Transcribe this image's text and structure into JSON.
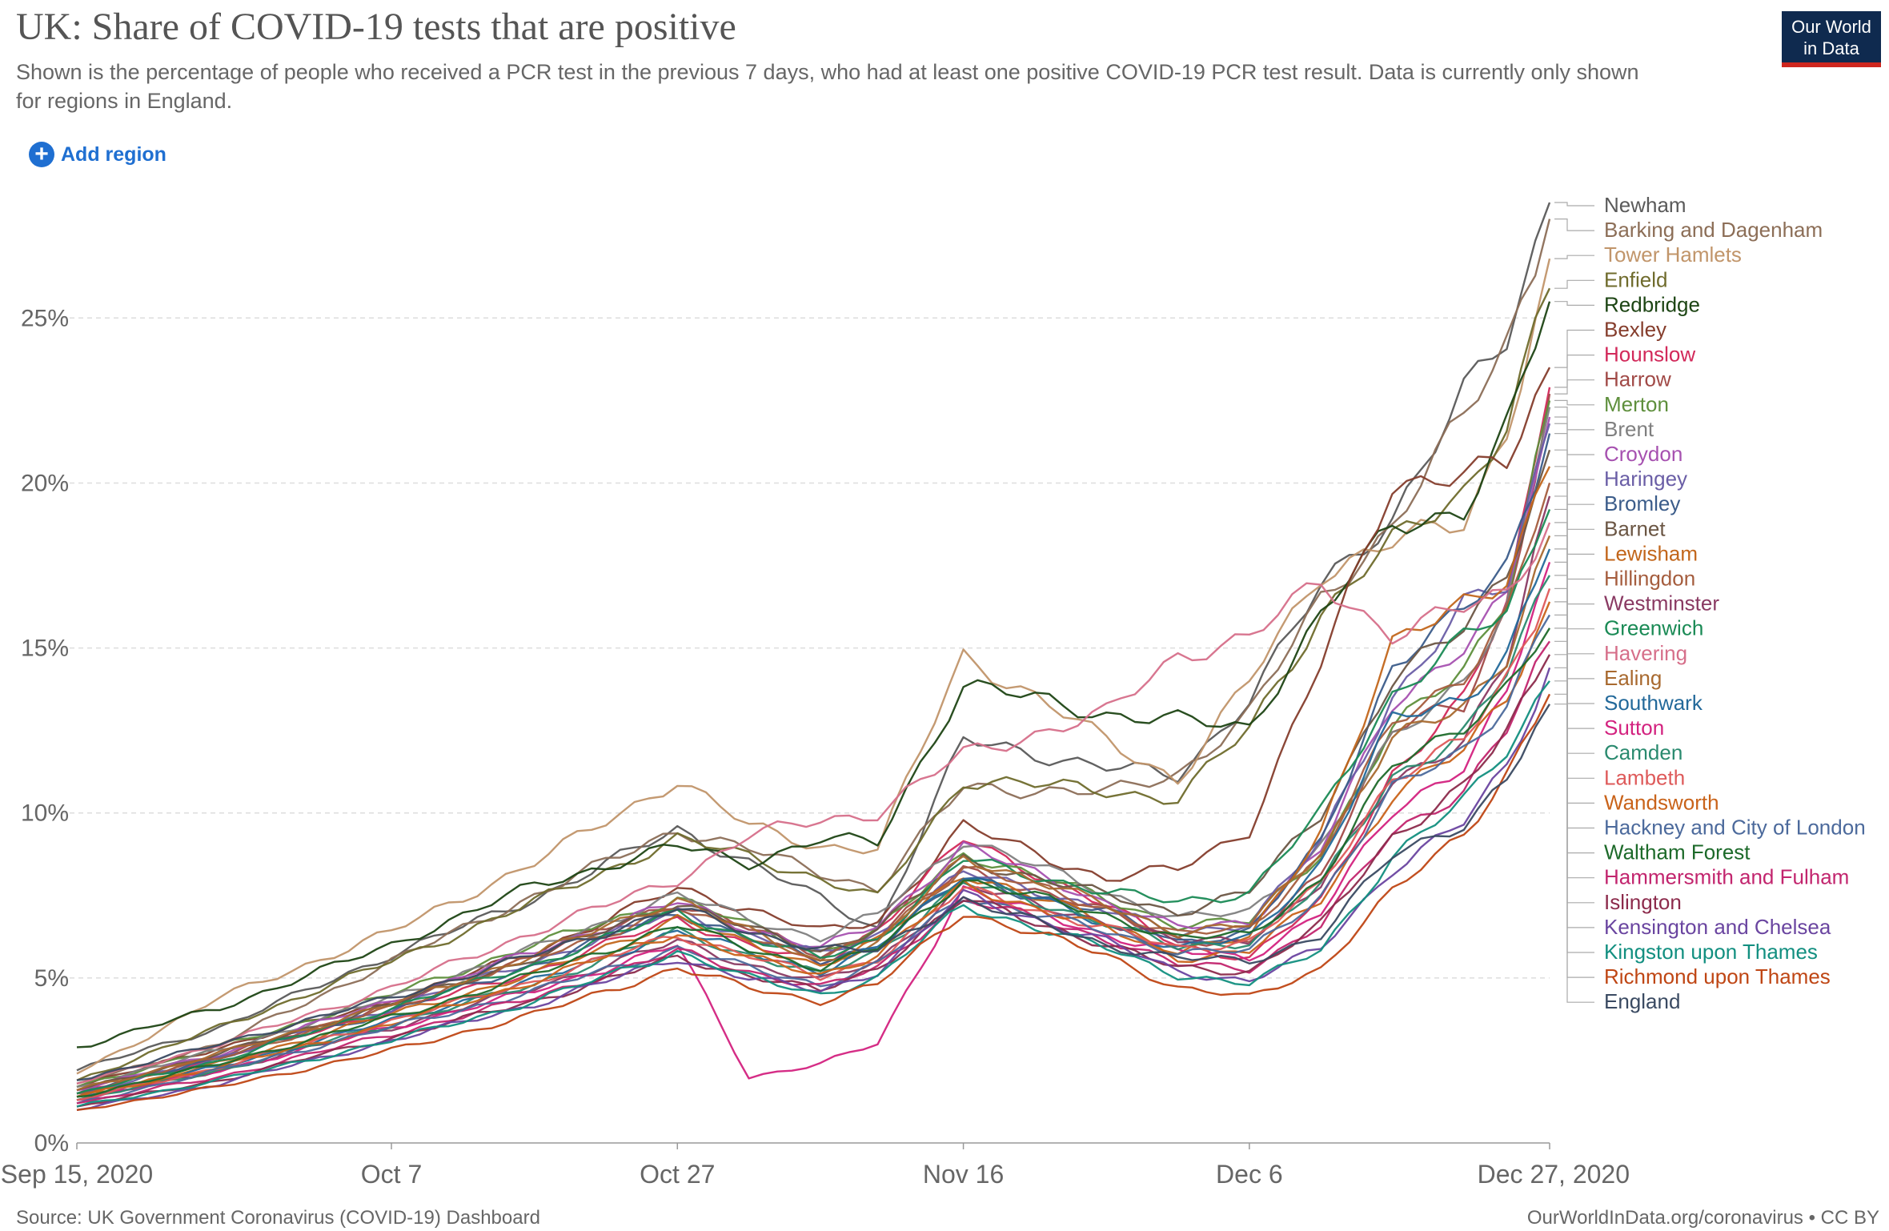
{
  "title": "UK: Share of COVID-19 tests that are positive",
  "subtitle": "Shown is the percentage of people who received a PCR test in the previous 7 days, who had at least one positive COVID-19 PCR test result. Data is currently only shown for regions in England.",
  "logo": {
    "line1": "Our World",
    "line2": "in Data"
  },
  "add_region": {
    "label": "Add region",
    "icon": "plus-circle-icon"
  },
  "footer": {
    "source": "Source: UK Government Coronavirus (COVID-19) Dashboard",
    "credit": "OurWorldInData.org/coronavirus • CC BY"
  },
  "colors": {
    "gridline": "#dddddd",
    "axis": "#666666",
    "leader": "#aaaaaa",
    "logo_bg": "#0f2a4f",
    "logo_accent": "#ce261e",
    "link": "#1f6fd1"
  },
  "chart_data": {
    "type": "line",
    "title": "UK: Share of COVID-19 tests that are positive",
    "ylabel": "",
    "xlabel": "",
    "ylim": [
      0,
      28.5
    ],
    "yticks": [
      0,
      5,
      10,
      15,
      20,
      25
    ],
    "ytick_labels": [
      "0%",
      "5%",
      "10%",
      "15%",
      "20%",
      "25%"
    ],
    "x_start": "Sep 15, 2020",
    "x_end": "Dec 27, 2020",
    "xlim": [
      0,
      103
    ],
    "xticks": [
      {
        "day": 0,
        "label": "Sep 15, 2020"
      },
      {
        "day": 22,
        "label": "Oct 7"
      },
      {
        "day": 42,
        "label": "Oct 27"
      },
      {
        "day": 62,
        "label": "Nov 16"
      },
      {
        "day": 82,
        "label": "Dec 6"
      },
      {
        "day": 103,
        "label": "Dec 27, 2020"
      }
    ],
    "anchor_days": [
      0,
      10,
      22,
      32,
      42,
      47,
      52,
      56,
      62,
      72,
      77,
      82,
      87,
      92,
      97,
      100,
      103
    ],
    "grid": true,
    "legend_position": "right",
    "series": [
      {
        "name": "Newham",
        "color": "#5a5a5a",
        "final": 28.5,
        "values": [
          2.2,
          3.5,
          5.7,
          7.4,
          9.5,
          8.5,
          7.4,
          6.5,
          12.2,
          11.4,
          11.1,
          13.5,
          16.8,
          19.0,
          22.7,
          24.3,
          28.5
        ]
      },
      {
        "name": "Barking and Dagenham",
        "color": "#8c6e57",
        "final": 28.0,
        "values": [
          1.8,
          3.0,
          5.5,
          7.5,
          9.5,
          8.9,
          8.2,
          7.7,
          10.8,
          10.6,
          11.2,
          13.0,
          16.5,
          18.7,
          22.0,
          24.3,
          28.0
        ]
      },
      {
        "name": "Tower Hamlets",
        "color": "#c1956a",
        "final": 26.8,
        "values": [
          2.1,
          4.4,
          6.4,
          8.5,
          11.0,
          9.6,
          9.0,
          8.9,
          14.8,
          12.2,
          11.0,
          14.0,
          17.3,
          18.2,
          18.8,
          21.6,
          26.8
        ]
      },
      {
        "name": "Enfield",
        "color": "#6f6b2c",
        "final": 25.9,
        "values": [
          1.9,
          3.5,
          5.5,
          7.3,
          9.2,
          8.7,
          8.0,
          7.4,
          11.0,
          10.7,
          10.4,
          12.6,
          16.0,
          18.2,
          19.8,
          21.8,
          25.9
        ]
      },
      {
        "name": "Redbridge",
        "color": "#1d4514",
        "final": 25.5,
        "values": [
          2.9,
          4.1,
          6.0,
          7.8,
          9.0,
          8.5,
          9.2,
          9.1,
          13.9,
          13.0,
          12.8,
          12.6,
          16.0,
          18.7,
          19.2,
          21.6,
          25.5
        ]
      },
      {
        "name": "Bexley",
        "color": "#853d2c",
        "final": 23.5,
        "values": [
          1.7,
          2.9,
          4.3,
          5.8,
          7.7,
          7.1,
          6.4,
          6.7,
          9.6,
          8.0,
          8.3,
          9.5,
          14.5,
          20.0,
          20.3,
          20.5,
          23.5
        ]
      },
      {
        "name": "Hounslow",
        "color": "#d2295a",
        "final": 22.9,
        "values": [
          1.5,
          2.6,
          4.0,
          5.2,
          6.8,
          6.0,
          5.4,
          6.5,
          9.2,
          7.2,
          6.0,
          5.6,
          7.3,
          11.2,
          13.4,
          16.4,
          22.9
        ]
      },
      {
        "name": "Harrow",
        "color": "#a14a47",
        "final": 22.7,
        "values": [
          1.6,
          2.6,
          4.2,
          5.7,
          7.3,
          6.5,
          5.7,
          6.3,
          8.3,
          7.0,
          6.2,
          6.0,
          8.2,
          12.6,
          13.2,
          16.2,
          22.7
        ]
      },
      {
        "name": "Merton",
        "color": "#5e8f3c",
        "final": 22.5,
        "values": [
          1.7,
          2.9,
          4.5,
          6.0,
          7.4,
          6.6,
          5.8,
          6.4,
          8.8,
          7.4,
          6.6,
          6.7,
          8.8,
          12.5,
          14.4,
          16.6,
          22.5
        ]
      },
      {
        "name": "Brent",
        "color": "#7f7f7f",
        "final": 22.3,
        "values": [
          1.7,
          2.8,
          4.4,
          5.9,
          7.5,
          6.8,
          6.2,
          6.9,
          9.2,
          7.6,
          6.8,
          7.0,
          9.0,
          12.2,
          14.1,
          16.2,
          22.3
        ]
      },
      {
        "name": "Croydon",
        "color": "#a651b0",
        "final": 22.0,
        "values": [
          1.6,
          2.7,
          4.3,
          5.8,
          7.3,
          6.5,
          5.9,
          6.6,
          9.0,
          7.3,
          6.5,
          6.7,
          8.9,
          13.3,
          15.1,
          16.5,
          22.0
        ]
      },
      {
        "name": "Haringey",
        "color": "#6a5ea6",
        "final": 21.8,
        "values": [
          1.4,
          2.6,
          4.1,
          5.5,
          7.0,
          6.3,
          5.7,
          6.3,
          8.2,
          7.1,
          6.3,
          6.7,
          9.1,
          13.5,
          16.3,
          16.8,
          21.8
        ]
      },
      {
        "name": "Bromley",
        "color": "#3b5c8a",
        "final": 21.5,
        "values": [
          1.5,
          2.6,
          4.0,
          5.4,
          7.0,
          6.2,
          5.5,
          6.0,
          8.0,
          7.0,
          6.1,
          6.4,
          9.1,
          14.5,
          16.1,
          17.5,
          21.5
        ]
      },
      {
        "name": "Barnet",
        "color": "#6b5644",
        "final": 21.0,
        "values": [
          1.6,
          2.7,
          4.2,
          5.6,
          7.3,
          6.5,
          5.8,
          6.5,
          8.6,
          7.5,
          7.0,
          7.6,
          10.0,
          14.0,
          15.6,
          17.4,
          21.0
        ]
      },
      {
        "name": "Lewisham",
        "color": "#c2661b",
        "final": 20.5,
        "values": [
          1.4,
          2.4,
          3.9,
          5.1,
          6.8,
          6.0,
          5.4,
          6.1,
          8.2,
          6.7,
          5.8,
          6.2,
          9.5,
          15.0,
          16.5,
          17.1,
          20.5
        ]
      },
      {
        "name": "Hillingdon",
        "color": "#a55d3e",
        "final": 20.0,
        "values": [
          1.5,
          2.6,
          4.1,
          5.6,
          7.1,
          6.3,
          5.6,
          6.2,
          8.4,
          7.1,
          6.3,
          6.5,
          8.7,
          12.7,
          14.2,
          16.0,
          20.0
        ]
      },
      {
        "name": "Westminster",
        "color": "#8a3a63",
        "final": 19.6,
        "values": [
          1.3,
          2.2,
          3.5,
          4.7,
          6.1,
          5.4,
          4.9,
          5.5,
          7.8,
          6.7,
          6.1,
          6.2,
          7.8,
          11.0,
          12.2,
          14.5,
          19.6
        ]
      },
      {
        "name": "Greenwich",
        "color": "#1a8a55",
        "final": 19.2,
        "values": [
          1.5,
          2.5,
          4.1,
          5.4,
          7.0,
          6.2,
          5.6,
          6.2,
          8.6,
          7.6,
          7.3,
          7.6,
          10.0,
          13.6,
          15.3,
          16.0,
          19.2
        ]
      },
      {
        "name": "Havering",
        "color": "#d66f8a",
        "final": 18.8,
        "values": [
          1.8,
          3.0,
          4.7,
          6.4,
          8.0,
          9.3,
          9.8,
          10.0,
          11.8,
          13.0,
          14.8,
          15.3,
          17.0,
          15.4,
          16.2,
          16.7,
          18.8
        ]
      },
      {
        "name": "Ealing",
        "color": "#a8692f",
        "final": 18.4,
        "values": [
          1.6,
          2.7,
          4.2,
          5.7,
          7.4,
          6.4,
          5.5,
          6.0,
          8.7,
          7.2,
          6.4,
          6.6,
          8.9,
          12.2,
          13.2,
          14.8,
          18.4
        ]
      },
      {
        "name": "Southwark",
        "color": "#23699a",
        "final": 18.0,
        "values": [
          1.4,
          2.3,
          3.7,
          4.9,
          6.4,
          5.8,
          5.2,
          5.9,
          8.2,
          6.6,
          5.9,
          6.2,
          8.5,
          12.8,
          13.5,
          14.8,
          18.0
        ]
      },
      {
        "name": "Sutton",
        "color": "#d3227f",
        "final": 17.6,
        "values": [
          1.3,
          2.2,
          3.5,
          4.6,
          6.0,
          2.0,
          2.4,
          3.0,
          7.7,
          6.3,
          5.8,
          5.6,
          7.0,
          10.0,
          11.5,
          13.6,
          17.6
        ]
      },
      {
        "name": "Camden",
        "color": "#2a8a6f",
        "final": 17.2,
        "values": [
          1.3,
          2.2,
          3.6,
          4.8,
          6.4,
          5.7,
          5.1,
          5.8,
          7.9,
          6.7,
          5.9,
          6.1,
          7.8,
          11.1,
          12.4,
          14.2,
          17.2
        ]
      },
      {
        "name": "Lambeth",
        "color": "#de5a5a",
        "final": 16.8,
        "values": [
          1.3,
          2.3,
          3.7,
          4.9,
          6.3,
          5.7,
          5.0,
          5.6,
          7.7,
          6.5,
          5.9,
          6.1,
          7.8,
          11.1,
          12.2,
          14.0,
          16.8
        ]
      },
      {
        "name": "Wandsworth",
        "color": "#c9631a",
        "final": 16.4,
        "values": [
          1.4,
          2.3,
          3.6,
          4.9,
          6.4,
          5.6,
          5.1,
          5.7,
          7.8,
          6.5,
          5.6,
          5.8,
          7.4,
          10.5,
          11.9,
          13.6,
          16.4
        ]
      },
      {
        "name": "Hackney and City of London",
        "color": "#4c6a9c",
        "final": 16.0,
        "values": [
          1.2,
          2.2,
          3.5,
          4.6,
          5.9,
          5.3,
          4.8,
          5.4,
          7.5,
          6.4,
          5.8,
          5.8,
          7.5,
          10.7,
          11.9,
          13.4,
          16.0
        ]
      },
      {
        "name": "Waltham Forest",
        "color": "#1d6a2a",
        "final": 15.6,
        "values": [
          1.4,
          2.4,
          3.8,
          5.1,
          6.6,
          5.9,
          5.3,
          5.9,
          8.0,
          6.9,
          6.2,
          6.3,
          8.0,
          11.4,
          12.7,
          13.8,
          15.6
        ]
      },
      {
        "name": "Hammersmith and Fulham",
        "color": "#c2256e",
        "final": 15.2,
        "values": [
          1.2,
          2.0,
          3.3,
          4.4,
          5.8,
          5.2,
          4.7,
          5.3,
          7.4,
          6.2,
          5.4,
          5.3,
          6.6,
          9.4,
          10.7,
          12.5,
          15.2
        ]
      },
      {
        "name": "Islington",
        "color": "#8c2b4c",
        "final": 14.8,
        "values": [
          1.1,
          1.9,
          3.2,
          4.3,
          5.6,
          5.1,
          4.6,
          5.3,
          7.4,
          6.0,
          5.3,
          5.2,
          6.6,
          9.3,
          10.8,
          12.4,
          14.8
        ]
      },
      {
        "name": "Kensington and Chelsea",
        "color": "#6a45a0",
        "final": 14.4,
        "values": [
          1.0,
          1.8,
          3.1,
          4.2,
          5.6,
          5.0,
          4.6,
          5.2,
          7.5,
          6.1,
          5.2,
          4.9,
          5.9,
          8.3,
          9.7,
          11.4,
          14.4
        ]
      },
      {
        "name": "Kingston upon Thames",
        "color": "#128f80",
        "final": 14.0,
        "values": [
          1.1,
          1.9,
          3.1,
          4.3,
          5.8,
          5.0,
          4.5,
          5.0,
          7.2,
          5.9,
          5.1,
          4.8,
          5.9,
          8.6,
          10.4,
          12.0,
          14.0
        ]
      },
      {
        "name": "Richmond upon Thames",
        "color": "#bf4614",
        "final": 13.6,
        "values": [
          1.0,
          1.7,
          2.8,
          3.9,
          5.3,
          4.7,
          4.3,
          4.8,
          7.0,
          5.7,
          4.7,
          4.4,
          5.3,
          7.6,
          9.4,
          11.2,
          13.6
        ]
      },
      {
        "name": "England",
        "color": "#3a4a62",
        "final": 13.3,
        "values": [
          1.9,
          3.0,
          4.4,
          5.7,
          7.1,
          6.4,
          5.9,
          5.8,
          7.4,
          6.0,
          5.6,
          5.5,
          6.3,
          8.7,
          9.7,
          11.0,
          13.3
        ]
      }
    ]
  }
}
